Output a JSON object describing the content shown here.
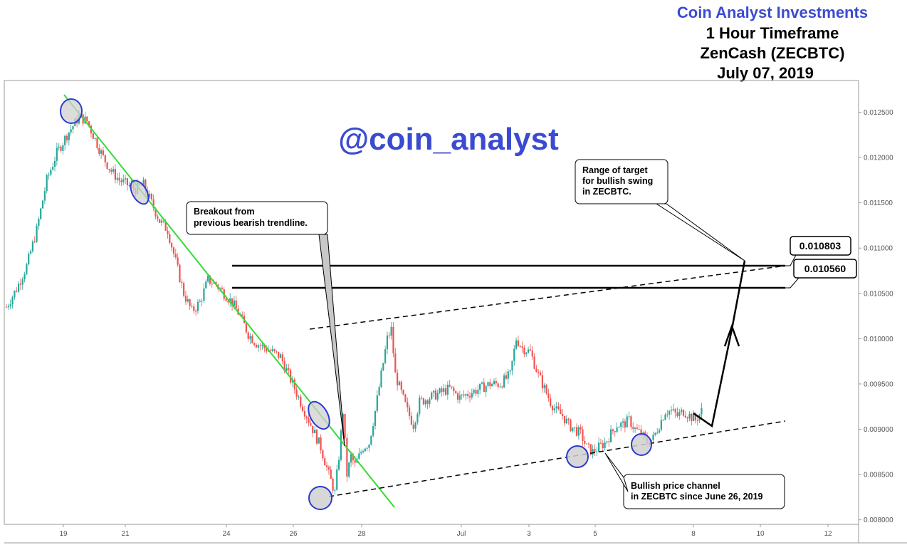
{
  "header": {
    "brand": "Coin Analyst Investments",
    "timeframe": "1 Hour Timeframe",
    "symbol": "ZenCash (ZECBTC)",
    "date": "July 07, 2019"
  },
  "watermark": "@coin_analyst",
  "colors": {
    "up": "#26a69a",
    "down": "#ef5350",
    "trendline": "#33dd33",
    "circle_fill": "#d6d6d6",
    "circle_stroke": "#2a3bd0",
    "brand": "#3b4bd0"
  },
  "chart_data": {
    "type": "candlestick",
    "x_tick_labels": [
      "19",
      "21",
      "24",
      "26",
      "28",
      "Jul",
      "3",
      "5",
      "8",
      "10",
      "12"
    ],
    "y_tick_labels": [
      "0.012500",
      "0.012000",
      "0.011500",
      "0.011000",
      "0.010500",
      "0.010000",
      "0.009500",
      "0.009000",
      "0.008500",
      "0.008000"
    ],
    "ylim": [
      0.00795,
      0.01285
    ],
    "price_path": [
      [
        0,
        0.01035
      ],
      [
        5,
        0.01055
      ],
      [
        10,
        0.0108
      ],
      [
        15,
        0.0112
      ],
      [
        20,
        0.01175
      ],
      [
        25,
        0.01205
      ],
      [
        30,
        0.01225
      ],
      [
        36,
        0.01245
      ],
      [
        40,
        0.0124
      ],
      [
        44,
        0.0122
      ],
      [
        48,
        0.012
      ],
      [
        52,
        0.01185
      ],
      [
        56,
        0.01175
      ],
      [
        60,
        0.0117
      ],
      [
        64,
        0.01165
      ],
      [
        68,
        0.0117
      ],
      [
        72,
        0.0115
      ],
      [
        76,
        0.0113
      ],
      [
        80,
        0.0112
      ],
      [
        84,
        0.01085
      ],
      [
        88,
        0.0105
      ],
      [
        92,
        0.0103
      ],
      [
        96,
        0.0104
      ],
      [
        100,
        0.01065
      ],
      [
        104,
        0.0106
      ],
      [
        108,
        0.0105
      ],
      [
        112,
        0.0104
      ],
      [
        116,
        0.01025
      ],
      [
        120,
        0.01005
      ],
      [
        124,
        0.00995
      ],
      [
        128,
        0.0099
      ],
      [
        132,
        0.00985
      ],
      [
        136,
        0.0098
      ],
      [
        140,
        0.0096
      ],
      [
        144,
        0.0094
      ],
      [
        148,
        0.0092
      ],
      [
        152,
        0.009
      ],
      [
        156,
        0.0088
      ],
      [
        160,
        0.0085
      ],
      [
        163,
        0.0083
      ],
      [
        165,
        0.0087
      ],
      [
        167,
        0.0092
      ],
      [
        169,
        0.0085
      ],
      [
        171,
        0.0087
      ],
      [
        173,
        0.0086
      ],
      [
        175,
        0.0087
      ],
      [
        177,
        0.0088
      ],
      [
        180,
        0.00885
      ],
      [
        183,
        0.0092
      ],
      [
        186,
        0.0096
      ],
      [
        189,
        0.01
      ],
      [
        191,
        0.0101
      ],
      [
        193,
        0.0096
      ],
      [
        196,
        0.0094
      ],
      [
        199,
        0.0092
      ],
      [
        202,
        0.00905
      ],
      [
        205,
        0.0093
      ],
      [
        210,
        0.00935
      ],
      [
        215,
        0.0094
      ],
      [
        220,
        0.00945
      ],
      [
        225,
        0.00935
      ],
      [
        230,
        0.0094
      ],
      [
        235,
        0.00945
      ],
      [
        240,
        0.0095
      ],
      [
        245,
        0.0095
      ],
      [
        250,
        0.0096
      ],
      [
        253,
        0.01
      ],
      [
        256,
        0.0099
      ],
      [
        260,
        0.00985
      ],
      [
        264,
        0.0096
      ],
      [
        267,
        0.00945
      ],
      [
        270,
        0.0093
      ],
      [
        273,
        0.0092
      ],
      [
        276,
        0.00915
      ],
      [
        279,
        0.00905
      ],
      [
        282,
        0.009
      ],
      [
        285,
        0.00895
      ],
      [
        288,
        0.0088
      ],
      [
        291,
        0.00875
      ],
      [
        294,
        0.0088
      ],
      [
        297,
        0.00885
      ],
      [
        300,
        0.00895
      ],
      [
        303,
        0.00905
      ],
      [
        306,
        0.00905
      ],
      [
        309,
        0.0091
      ],
      [
        312,
        0.009
      ],
      [
        315,
        0.00895
      ],
      [
        318,
        0.00885
      ],
      [
        321,
        0.0089
      ],
      [
        324,
        0.00905
      ],
      [
        327,
        0.0092
      ],
      [
        330,
        0.0092
      ],
      [
        333,
        0.00915
      ],
      [
        336,
        0.0092
      ],
      [
        339,
        0.00915
      ],
      [
        342,
        0.0091
      ],
      [
        345,
        0.0092
      ]
    ],
    "annotations": {
      "level_1": "0.010803",
      "level_2": "0.010560",
      "breakout_note": [
        "Breakout from",
        "previous bearish trendline."
      ],
      "target_note": [
        "Range of target",
        "for bullish swing",
        "in ZECBTC."
      ],
      "channel_note": [
        "Bullish price channel",
        "in ZECBTC since June 26, 2019"
      ]
    }
  }
}
